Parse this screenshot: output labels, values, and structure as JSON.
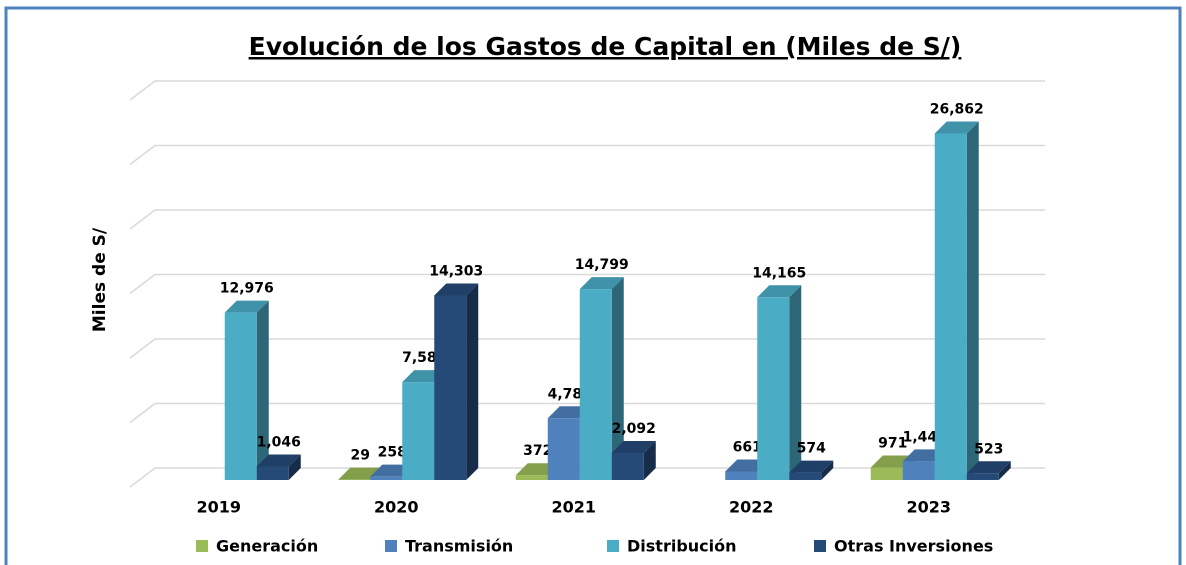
{
  "chart_data": {
    "type": "bar3d",
    "title": "Evolución de los Gastos de Capital en (Miles de S/)",
    "y_label": "Miles de S/",
    "categories": [
      "2019",
      "2020",
      "2021",
      "2022",
      "2023"
    ],
    "series": [
      {
        "name": "Generación",
        "color": "#9bbb59",
        "values": [
          null,
          29,
          372,
          null,
          971
        ],
        "value_labels": [
          null,
          "29",
          "372",
          null,
          "971"
        ]
      },
      {
        "name": "Transmisión",
        "color": "#4f81bd",
        "values": [
          null,
          258,
          4786,
          661,
          1448
        ],
        "value_labels": [
          null,
          "258",
          "4,786",
          "661",
          "1,448"
        ]
      },
      {
        "name": "Distribución",
        "color": "#4bacc6",
        "values": [
          12976,
          7589,
          14799,
          14165,
          26862
        ],
        "value_labels": [
          "12,976",
          "7,589",
          "14,799",
          "14,165",
          "26,862"
        ]
      },
      {
        "name": "Otras Inversiones",
        "color": "#254a78",
        "values": [
          1046,
          14303,
          2092,
          574,
          523
        ],
        "value_labels": [
          "1,046",
          "14,303",
          "2,092",
          "574",
          "523"
        ]
      }
    ],
    "ylim": [
      0,
      30000
    ],
    "yticks": [
      0,
      5000,
      10000,
      15000,
      20000,
      25000,
      30000
    ],
    "grid": true,
    "legend": "bottom"
  }
}
